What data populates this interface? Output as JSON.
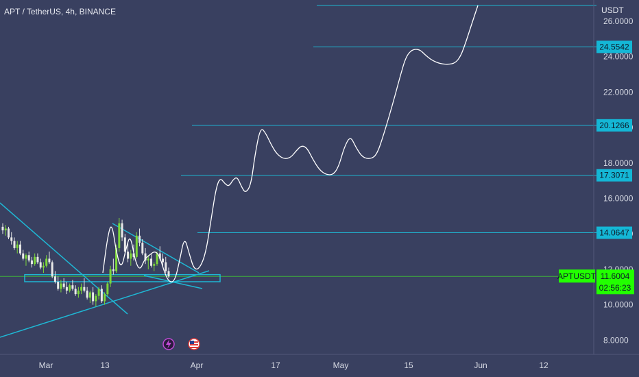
{
  "header": {
    "title": "APT / TetherUS, 4h, BINANCE",
    "currency": "USDT"
  },
  "colors": {
    "background": "#394060",
    "axis_panel": "#394060",
    "level_line": "#1fb7d4",
    "projection": "#ffffff",
    "candle_up": "#7dd83a",
    "candle_down": "#e8e8e8",
    "price_tag": "#22ff00",
    "level_tag": "#14b7d6"
  },
  "chart_data": {
    "type": "candlestick",
    "y_axis": {
      "ticks": [
        "8.0000",
        "10.0000",
        "12.0000",
        "14.0000",
        "16.0000",
        "18.0000",
        "20.0000",
        "22.0000",
        "24.0000",
        "26.0000"
      ],
      "range": [
        7.2,
        27.2
      ],
      "side": "right"
    },
    "x_axis": {
      "ticks": [
        "Mar",
        "13",
        "Apr",
        "17",
        "May",
        "15",
        "Jun",
        "12"
      ]
    },
    "levels": [
      {
        "value": 26.9,
        "label": ""
      },
      {
        "value": 24.5542,
        "label": "24.5542"
      },
      {
        "value": 20.1266,
        "label": "20.1266"
      },
      {
        "value": 17.3071,
        "label": "17.3071"
      },
      {
        "value": 14.0647,
        "label": "14.0647"
      }
    ],
    "current_price": {
      "symbol": "APTUSDT",
      "value": "11.6004",
      "countdown": "02:56:23"
    },
    "support_zone": [
      11.3,
      11.7
    ],
    "candles": [
      [
        14.4,
        14.6,
        14.0,
        14.2
      ],
      [
        14.2,
        14.5,
        13.9,
        14.3
      ],
      [
        14.3,
        14.4,
        13.7,
        13.8
      ],
      [
        13.8,
        14.1,
        13.4,
        13.6
      ],
      [
        13.6,
        13.8,
        13.1,
        13.2
      ],
      [
        13.2,
        13.6,
        12.9,
        13.4
      ],
      [
        13.4,
        13.6,
        12.8,
        12.9
      ],
      [
        12.9,
        13.1,
        12.5,
        12.6
      ],
      [
        12.6,
        12.9,
        12.2,
        12.8
      ],
      [
        12.8,
        13.0,
        12.4,
        12.5
      ],
      [
        12.5,
        12.7,
        12.1,
        12.3
      ],
      [
        12.3,
        12.9,
        12.2,
        12.7
      ],
      [
        12.7,
        12.9,
        12.3,
        12.4
      ],
      [
        12.4,
        12.6,
        12.0,
        12.1
      ],
      [
        12.1,
        12.4,
        11.8,
        12.2
      ],
      [
        12.2,
        12.8,
        12.1,
        12.6
      ],
      [
        12.6,
        13.0,
        12.3,
        12.4
      ],
      [
        12.4,
        12.5,
        11.5,
        11.6
      ],
      [
        11.6,
        11.9,
        11.2,
        11.3
      ],
      [
        11.3,
        11.6,
        10.8,
        10.9
      ],
      [
        10.9,
        11.4,
        10.7,
        11.2
      ],
      [
        11.2,
        11.5,
        10.9,
        11.0
      ],
      [
        11.0,
        11.3,
        10.6,
        10.8
      ],
      [
        10.8,
        11.2,
        10.7,
        11.1
      ],
      [
        11.1,
        11.4,
        10.8,
        10.9
      ],
      [
        10.9,
        11.1,
        10.5,
        10.6
      ],
      [
        10.6,
        11.0,
        10.4,
        10.8
      ],
      [
        10.8,
        11.2,
        10.6,
        11.0
      ],
      [
        11.0,
        11.5,
        10.7,
        10.8
      ],
      [
        10.8,
        11.0,
        10.3,
        10.4
      ],
      [
        10.4,
        10.8,
        10.1,
        10.7
      ],
      [
        10.7,
        11.0,
        10.0,
        10.2
      ],
      [
        10.2,
        10.6,
        9.9,
        10.5
      ],
      [
        10.5,
        11.0,
        10.3,
        10.9
      ],
      [
        10.9,
        11.1,
        10.1,
        10.2
      ],
      [
        10.2,
        10.7,
        10.0,
        10.6
      ],
      [
        10.6,
        11.3,
        10.5,
        11.2
      ],
      [
        11.2,
        12.2,
        11.0,
        12.0
      ],
      [
        12.0,
        12.6,
        11.7,
        11.9
      ],
      [
        11.9,
        13.4,
        11.8,
        13.2
      ],
      [
        13.2,
        14.9,
        13.0,
        14.6
      ],
      [
        14.6,
        14.8,
        13.6,
        13.8
      ],
      [
        13.8,
        14.0,
        12.8,
        13.0
      ],
      [
        13.0,
        13.5,
        12.4,
        12.6
      ],
      [
        12.6,
        13.1,
        12.2,
        12.9
      ],
      [
        12.9,
        13.4,
        12.5,
        12.7
      ],
      [
        12.7,
        14.1,
        12.6,
        13.9
      ],
      [
        13.9,
        14.3,
        13.3,
        13.5
      ],
      [
        13.5,
        13.7,
        12.8,
        12.9
      ],
      [
        12.9,
        13.2,
        12.3,
        12.5
      ],
      [
        12.5,
        12.8,
        12.0,
        12.6
      ],
      [
        12.6,
        12.9,
        12.1,
        12.2
      ],
      [
        12.2,
        12.4,
        11.9,
        12.3
      ],
      [
        12.3,
        13.0,
        12.2,
        12.9
      ],
      [
        12.9,
        13.3,
        12.5,
        12.6
      ],
      [
        12.6,
        12.9,
        12.2,
        12.4
      ],
      [
        12.4,
        12.7,
        11.8,
        11.9
      ],
      [
        11.9,
        12.1,
        11.5,
        11.6
      ]
    ]
  }
}
